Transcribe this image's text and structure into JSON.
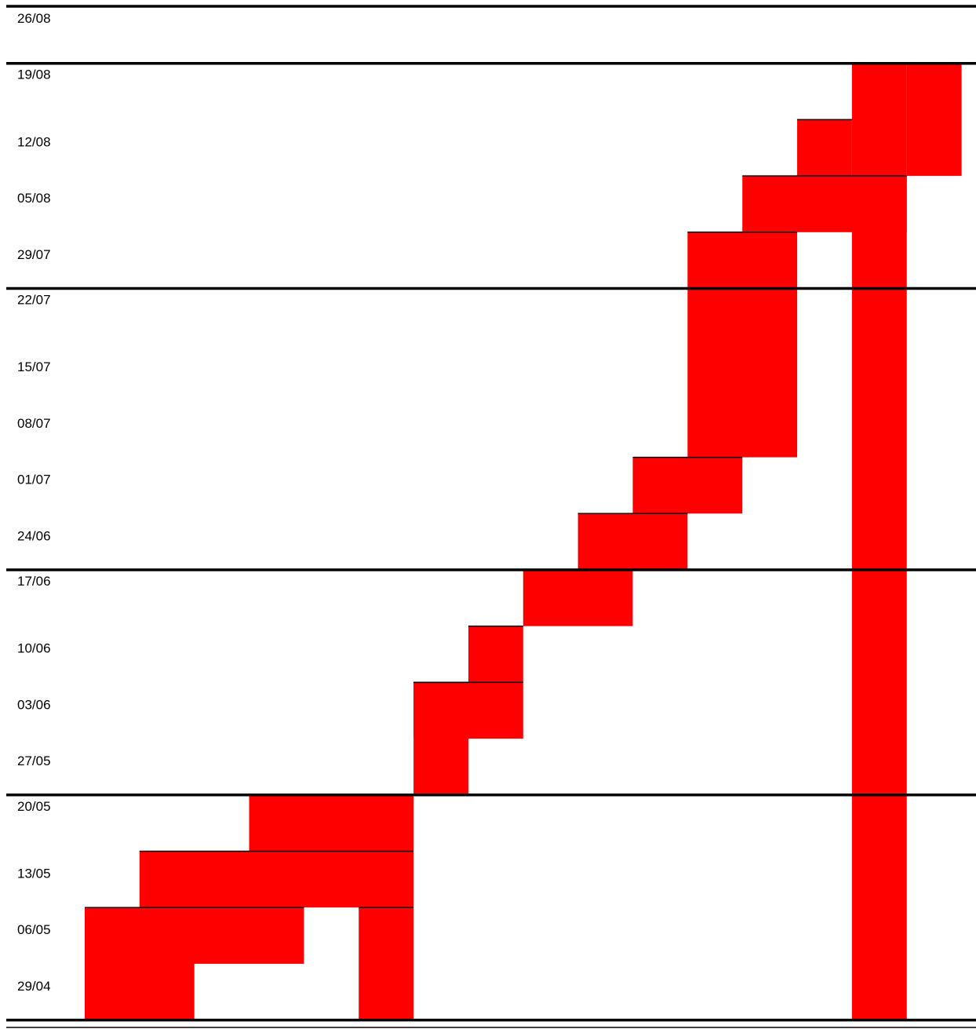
{
  "chart_data": {
    "type": "bar",
    "week_labels": [
      "26/08",
      "19/08",
      "12/08",
      "05/08",
      "29/07",
      "22/07",
      "15/07",
      "08/07",
      "01/07",
      "24/06",
      "17/06",
      "10/06",
      "03/06",
      "27/05",
      "20/05",
      "13/05",
      "06/05",
      "29/04"
    ],
    "month_boundaries_after": [
      "26/08",
      "29/07",
      "24/06",
      "27/05",
      "29/04"
    ],
    "columns": 16,
    "bar_color": "#ff0000",
    "grid_color": "#000000",
    "blocks": [
      {
        "col_start": 1,
        "col_end": 2,
        "week_start": "29/04",
        "week_end": "06/05"
      },
      {
        "col_start": 2,
        "col_end": 4,
        "week_start": "06/05",
        "week_end": "06/05"
      },
      {
        "col_start": 2,
        "col_end": 6,
        "week_start": "13/05",
        "week_end": "13/05"
      },
      {
        "col_start": 4,
        "col_end": 6,
        "week_start": "20/05",
        "week_end": "20/05"
      },
      {
        "col_start": 6,
        "col_end": 6,
        "week_start": "29/04",
        "week_end": "06/05"
      },
      {
        "col_start": 7,
        "col_end": 7,
        "week_start": "27/05",
        "week_end": "03/06"
      },
      {
        "col_start": 7,
        "col_end": 8,
        "week_start": "03/06",
        "week_end": "03/06"
      },
      {
        "col_start": 8,
        "col_end": 8,
        "week_start": "10/06",
        "week_end": "10/06"
      },
      {
        "col_start": 9,
        "col_end": 10,
        "week_start": "17/06",
        "week_end": "17/06"
      },
      {
        "col_start": 10,
        "col_end": 11,
        "week_start": "24/06",
        "week_end": "24/06"
      },
      {
        "col_start": 11,
        "col_end": 12,
        "week_start": "01/07",
        "week_end": "01/07"
      },
      {
        "col_start": 12,
        "col_end": 13,
        "week_start": "08/07",
        "week_end": "29/07"
      },
      {
        "col_start": 13,
        "col_end": 15,
        "week_start": "05/08",
        "week_end": "05/08"
      },
      {
        "col_start": 14,
        "col_end": 14,
        "week_start": "12/08",
        "week_end": "12/08"
      },
      {
        "col_start": 15,
        "col_end": 15,
        "week_start": "29/04",
        "week_end": "19/08"
      },
      {
        "col_start": 16,
        "col_end": 16,
        "week_start": "12/08",
        "week_end": "19/08"
      }
    ]
  }
}
